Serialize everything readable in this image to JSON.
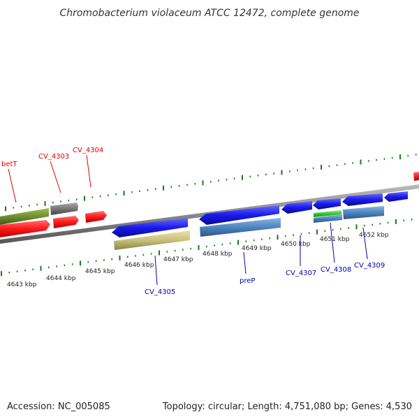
{
  "title": "Chromobacterium violaceum ATCC 12472, complete genome",
  "footer": {
    "accession": "Accession: NC_005085",
    "summary": "Topology: circular; Length: 4,751,080 bp; Genes: 4,530"
  },
  "scale_labels": [
    "4643 kbp",
    "4644 kbp",
    "4645 kbp",
    "4646 kbp",
    "4647 kbp",
    "4648 kbp",
    "4649 kbp",
    "4650 kbp",
    "4651 kbp",
    "4652 kbp"
  ],
  "gene_labels": {
    "top": [
      "betT",
      "CV_4303",
      "CV_4304"
    ],
    "bottom": [
      "CV_4305",
      "preP",
      "CV_4307",
      "CV_4308",
      "CV_4309"
    ]
  },
  "colors": {
    "top_label": "#dd0000",
    "bottom_label": "#0000aa",
    "backbone": "#888888",
    "tick": "#1a7a1a",
    "forward_gene": "#ff1a1a",
    "reverse_gene": "#1a1aee",
    "olive_gene": "#6f8f2f",
    "gray_gene": "#777777",
    "khaki_gene": "#c8c07a",
    "steel_gene": "#4f84bf",
    "green_gene": "#33cc33"
  }
}
